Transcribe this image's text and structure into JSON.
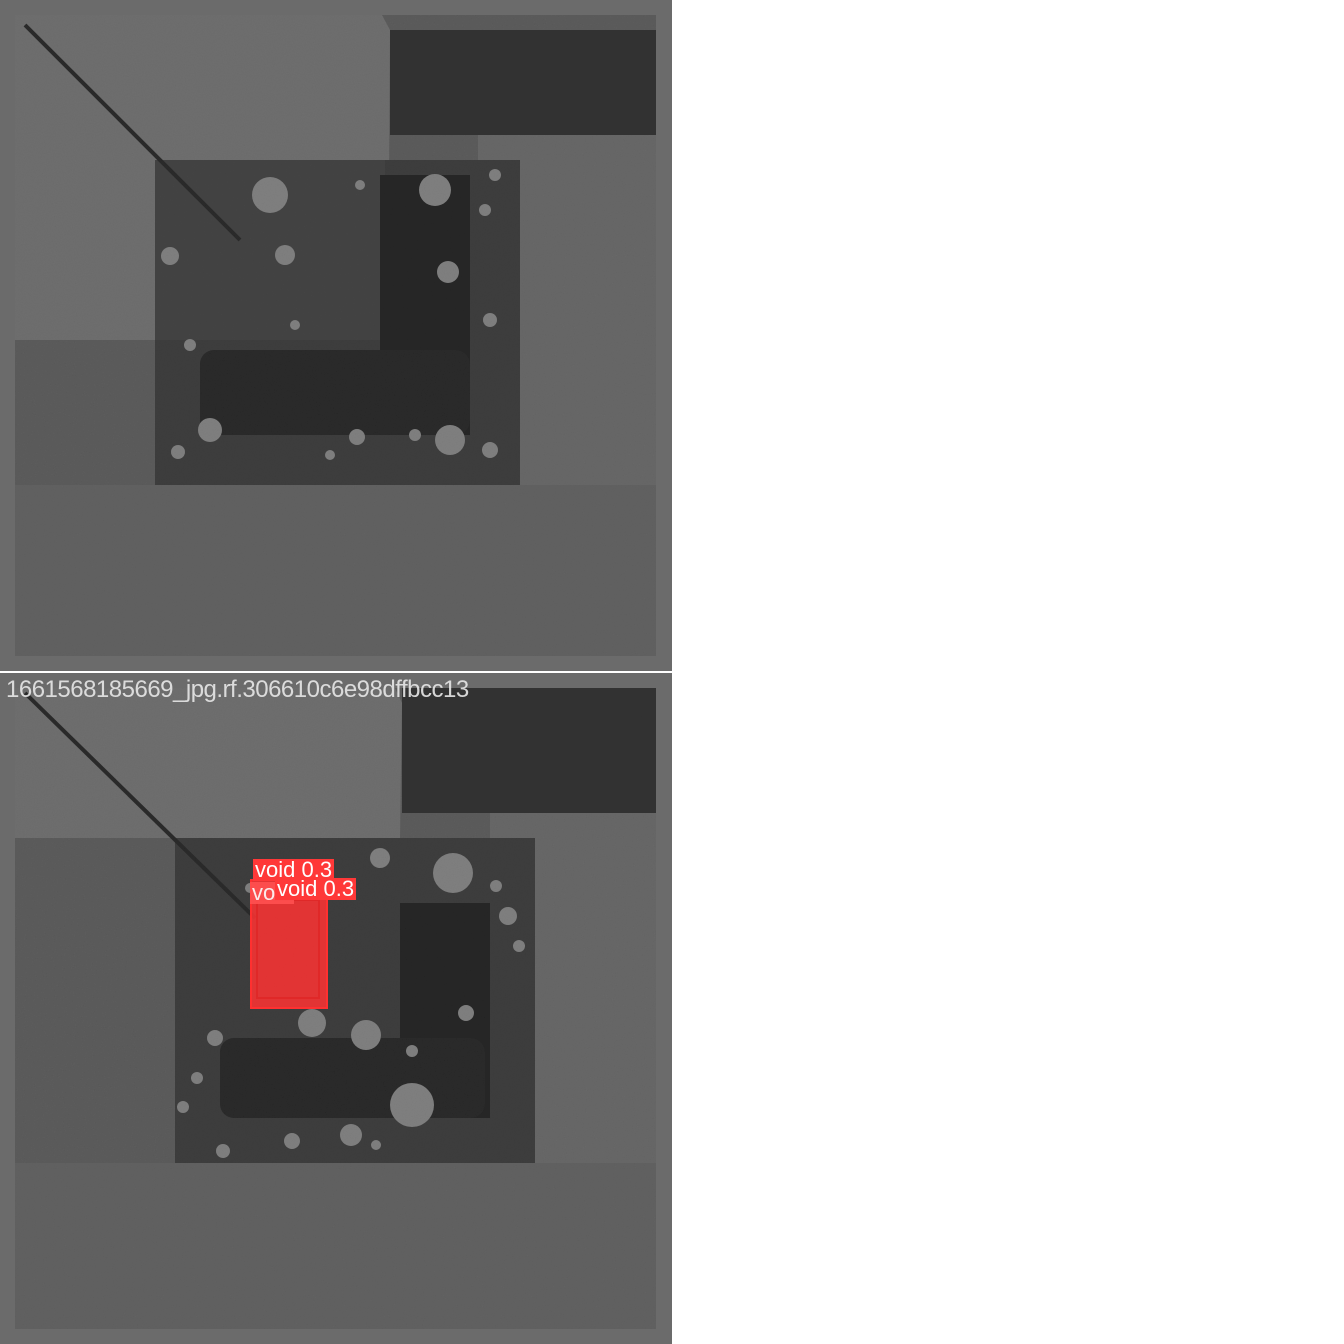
{
  "top_panel": {},
  "bottom_panel": {
    "caption": "1661568185669_jpg.rf.306610c6e98dffbcc13",
    "detections": [
      {
        "label": "void 0.3",
        "display": "void 0.3"
      },
      {
        "label": "void 0.3",
        "display": "void 0.3"
      },
      {
        "label": "void 0.3",
        "display": "void"
      }
    ],
    "box_color": "#ff3838"
  }
}
